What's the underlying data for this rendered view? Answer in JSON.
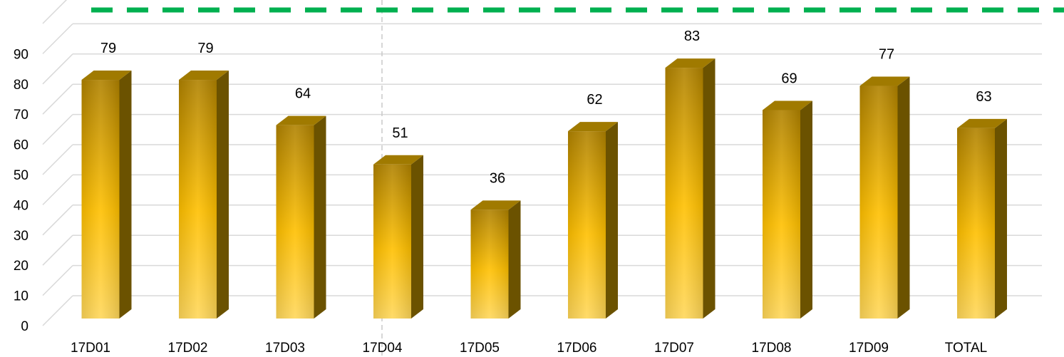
{
  "chart_data": {
    "type": "bar",
    "style": "3d-column",
    "categories": [
      "17D01",
      "17D02",
      "17D03",
      "17D04",
      "17D05",
      "17D06",
      "17D07",
      "17D08",
      "17D09",
      "TOTAL"
    ],
    "values": [
      79,
      79,
      64,
      51,
      36,
      62,
      83,
      69,
      77,
      63
    ],
    "y_ticks": [
      0,
      10,
      20,
      30,
      40,
      50,
      60,
      70,
      80,
      90
    ],
    "ylim": [
      0,
      100
    ],
    "grid": true,
    "data_labels": true,
    "reference_line": {
      "style": "dashed",
      "color": "#00b050"
    },
    "colors": {
      "bar_front_light": "#ffd75a",
      "bar_front_mid": "#ffc000",
      "bar_front_dark": "#b08200",
      "bar_side": "#6b5200",
      "bar_top": "#a07a00",
      "grid": "#d9d9d9"
    }
  }
}
